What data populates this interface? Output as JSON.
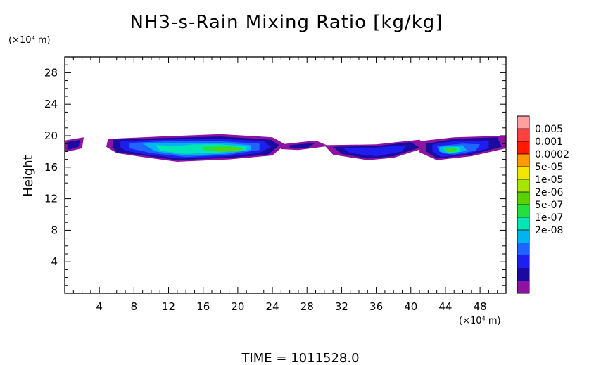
{
  "chart_data": {
    "type": "heatmap",
    "title": "NH3-s-Rain Mixing Ratio [kg/kg]",
    "ylabel": "Height",
    "y_unit": "(×10⁴ m)",
    "x_unit": "(×10⁴ m)",
    "xlim": [
      0,
      51
    ],
    "ylim": [
      0,
      30
    ],
    "x_ticks": [
      "4",
      "8",
      "12",
      "16",
      "20",
      "24",
      "28",
      "32",
      "36",
      "40",
      "44",
      "48"
    ],
    "y_ticks": [
      "4",
      "8",
      "12",
      "16",
      "20",
      "24",
      "28"
    ],
    "time_label": "TIME  =  1011528.0",
    "colorbar": {
      "labels": [
        "0.005",
        "0.001",
        "0.0002",
        "5e-05",
        "1e-05",
        "2e-06",
        "5e-07",
        "1e-07",
        "2e-08"
      ],
      "colors": [
        "#ffa0a0",
        "#ff4040",
        "#ff1a00",
        "#ff9a00",
        "#f2e600",
        "#a8e600",
        "#5ad200",
        "#22e040",
        "#00e6b4",
        "#00b4f0",
        "#1e64ff",
        "#1e1ef0",
        "#1a0aa0",
        "#8c14a0"
      ]
    },
    "bands": [
      {
        "level": 0,
        "pts": [
          [
            0,
            19.4
          ],
          [
            2.2,
            19.8
          ],
          [
            2.0,
            18.4
          ],
          [
            0,
            17.9
          ]
        ]
      },
      {
        "level": 0,
        "pts": [
          [
            5.0,
            19.6
          ],
          [
            11,
            19.9
          ],
          [
            18,
            20.2
          ],
          [
            24,
            19.8
          ],
          [
            25.5,
            18.9
          ],
          [
            24,
            17.5
          ],
          [
            19,
            17.0
          ],
          [
            13,
            16.7
          ],
          [
            9,
            17.3
          ],
          [
            6,
            17.8
          ],
          [
            4.8,
            18.6
          ]
        ]
      },
      {
        "level": 0,
        "pts": [
          [
            25,
            18.9
          ],
          [
            29,
            19.4
          ],
          [
            30.5,
            18.7
          ],
          [
            27,
            18.2
          ],
          [
            25,
            18.3
          ]
        ]
      },
      {
        "level": 0,
        "pts": [
          [
            30,
            18.8
          ],
          [
            36,
            18.9
          ],
          [
            41,
            19.5
          ],
          [
            42,
            18.6
          ],
          [
            38,
            17.2
          ],
          [
            35,
            16.9
          ],
          [
            31,
            17.6
          ]
        ]
      },
      {
        "level": 0,
        "pts": [
          [
            41,
            19.3
          ],
          [
            45,
            19.8
          ],
          [
            51,
            20.0
          ],
          [
            51,
            18.4
          ],
          [
            47,
            17.4
          ],
          [
            43,
            16.9
          ],
          [
            41,
            17.9
          ]
        ]
      },
      {
        "level": 1,
        "pts": [
          [
            0.3,
            19.2
          ],
          [
            1.8,
            19.5
          ],
          [
            1.6,
            18.6
          ],
          [
            0.3,
            18.2
          ]
        ]
      },
      {
        "level": 1,
        "pts": [
          [
            5.6,
            19.5
          ],
          [
            11,
            19.7
          ],
          [
            18,
            19.9
          ],
          [
            23.8,
            19.5
          ],
          [
            24.8,
            18.8
          ],
          [
            23.5,
            17.6
          ],
          [
            19,
            17.2
          ],
          [
            13,
            16.9
          ],
          [
            9,
            17.5
          ],
          [
            6,
            17.9
          ],
          [
            5.5,
            18.6
          ]
        ]
      },
      {
        "level": 1,
        "pts": [
          [
            26,
            18.8
          ],
          [
            29,
            19.1
          ],
          [
            28,
            18.4
          ],
          [
            26,
            18.5
          ]
        ]
      },
      {
        "level": 1,
        "pts": [
          [
            31,
            18.6
          ],
          [
            36,
            18.7
          ],
          [
            40,
            19.2
          ],
          [
            41,
            18.5
          ],
          [
            38,
            17.4
          ],
          [
            35,
            17.1
          ],
          [
            32,
            17.7
          ]
        ]
      },
      {
        "level": 1,
        "pts": [
          [
            41.8,
            19.0
          ],
          [
            45,
            19.6
          ],
          [
            50,
            19.8
          ],
          [
            50.5,
            18.6
          ],
          [
            47,
            17.6
          ],
          [
            43,
            17.1
          ],
          [
            41.8,
            18.0
          ]
        ]
      },
      {
        "level": 2,
        "pts": [
          [
            6.5,
            19.3
          ],
          [
            11,
            19.5
          ],
          [
            18,
            19.6
          ],
          [
            23,
            19.3
          ],
          [
            23.8,
            18.6
          ],
          [
            22.5,
            17.8
          ],
          [
            19,
            17.4
          ],
          [
            13.5,
            17.1
          ],
          [
            9.5,
            17.6
          ],
          [
            7,
            18.1
          ],
          [
            6.3,
            18.7
          ]
        ]
      },
      {
        "level": 2,
        "pts": [
          [
            32,
            18.5
          ],
          [
            36,
            18.5
          ],
          [
            39.5,
            18.8
          ],
          [
            39,
            18.0
          ],
          [
            36,
            17.4
          ],
          [
            33,
            17.8
          ]
        ]
      },
      {
        "level": 2,
        "pts": [
          [
            42.5,
            18.9
          ],
          [
            45,
            19.3
          ],
          [
            49,
            19.4
          ],
          [
            49,
            18.4
          ],
          [
            46.5,
            17.7
          ],
          [
            43.5,
            17.3
          ],
          [
            42.5,
            18.0
          ]
        ]
      },
      {
        "level": 3,
        "pts": [
          [
            7.5,
            19.1
          ],
          [
            12,
            19.3
          ],
          [
            18,
            19.3
          ],
          [
            22.5,
            19.0
          ],
          [
            22.5,
            18.2
          ],
          [
            19,
            17.6
          ],
          [
            14,
            17.3
          ],
          [
            10,
            17.8
          ],
          [
            7.5,
            18.4
          ]
        ]
      },
      {
        "level": 3,
        "pts": [
          [
            43,
            18.7
          ],
          [
            46,
            19.0
          ],
          [
            48,
            18.9
          ],
          [
            47.5,
            18.1
          ],
          [
            45,
            17.6
          ],
          [
            43.5,
            17.8
          ]
        ]
      },
      {
        "level": 4,
        "pts": [
          [
            9,
            19.0
          ],
          [
            13,
            19.1
          ],
          [
            18,
            19.1
          ],
          [
            21.5,
            18.8
          ],
          [
            21.5,
            18.2
          ],
          [
            18.5,
            17.7
          ],
          [
            14,
            17.5
          ],
          [
            10.5,
            18.0
          ]
        ]
      },
      {
        "level": 4,
        "pts": [
          [
            43.3,
            18.6
          ],
          [
            46,
            18.8
          ],
          [
            46.5,
            18.1
          ],
          [
            44.5,
            17.7
          ],
          [
            43.3,
            18.0
          ]
        ]
      },
      {
        "level": 5,
        "pts": [
          [
            10.5,
            18.8
          ],
          [
            13,
            18.7
          ],
          [
            15,
            18.9
          ],
          [
            18,
            18.9
          ],
          [
            21,
            18.6
          ],
          [
            21,
            18.2
          ],
          [
            18,
            17.9
          ],
          [
            14,
            17.7
          ],
          [
            11,
            18.1
          ]
        ]
      },
      {
        "level": 5,
        "pts": [
          [
            43.6,
            18.5
          ],
          [
            45.5,
            18.6
          ],
          [
            45.8,
            18.0
          ],
          [
            44.3,
            17.8
          ]
        ]
      },
      {
        "level": 6,
        "pts": [
          [
            16,
            18.6
          ],
          [
            19,
            18.7
          ],
          [
            20.8,
            18.4
          ],
          [
            20,
            18.0
          ],
          [
            17.5,
            18.0
          ],
          [
            16,
            18.2
          ]
        ]
      },
      {
        "level": 6,
        "pts": [
          [
            43.9,
            18.4
          ],
          [
            45.2,
            18.4
          ],
          [
            45.3,
            18.0
          ],
          [
            44.2,
            17.9
          ]
        ]
      },
      {
        "level": 7,
        "pts": [
          [
            17,
            18.4
          ],
          [
            19.5,
            18.5
          ],
          [
            20.3,
            18.3
          ],
          [
            19.5,
            18.05
          ],
          [
            17.8,
            18.1
          ]
        ]
      },
      {
        "level": 7,
        "pts": [
          [
            44.2,
            18.3
          ],
          [
            44.9,
            18.3
          ],
          [
            44.9,
            18.05
          ],
          [
            44.3,
            18.0
          ]
        ]
      }
    ]
  }
}
